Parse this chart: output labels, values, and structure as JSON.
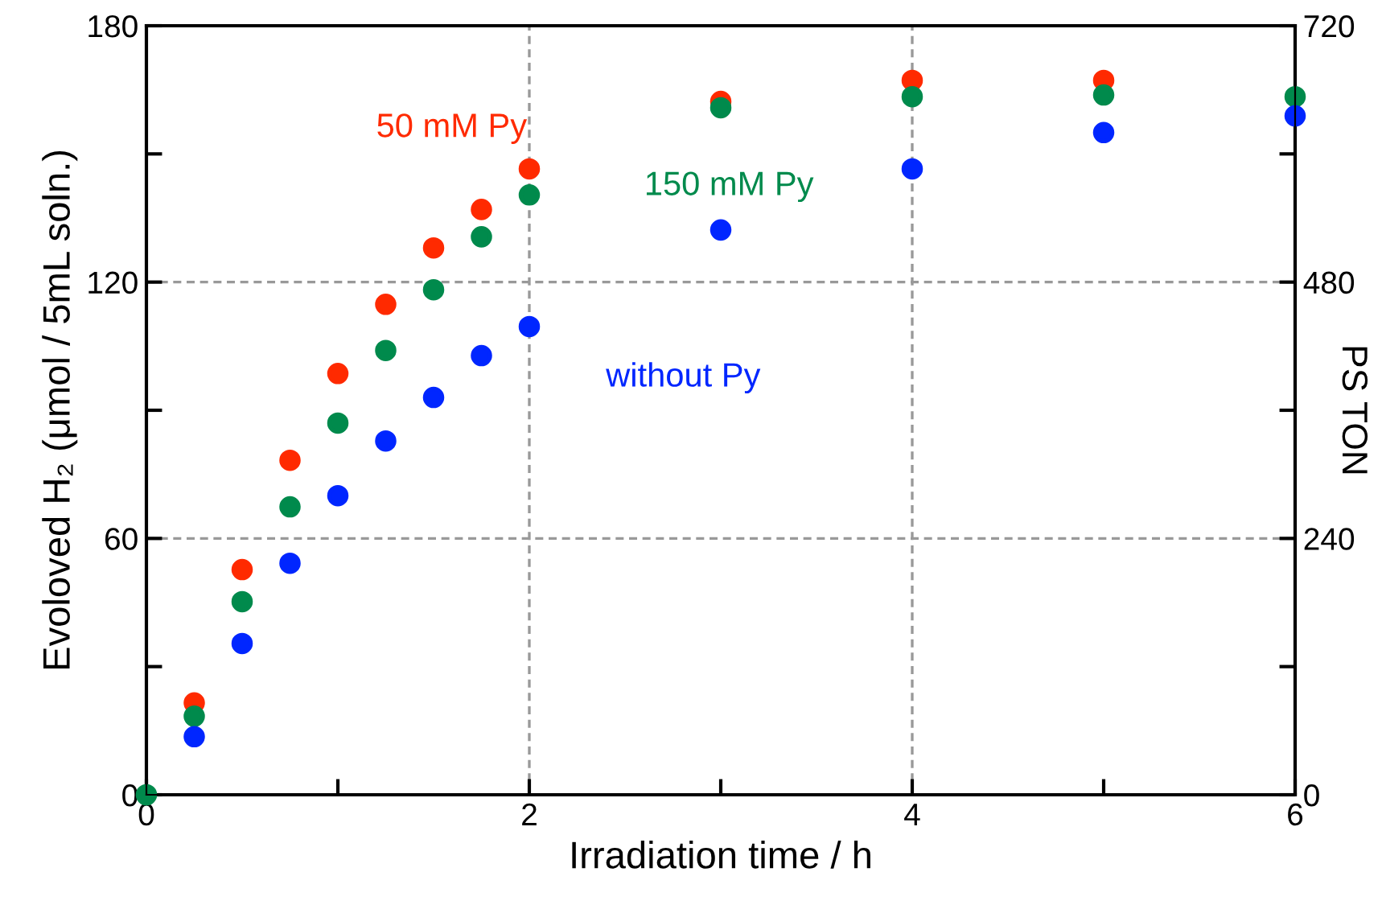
{
  "chart_data": {
    "type": "scatter",
    "xlabel": "Irradiation time / h",
    "ylabel": "Evoloved H₂ (μmol / 5mL soln.)",
    "y2label": "PS TON",
    "x": [
      0,
      0.25,
      0.5,
      0.75,
      1,
      1.25,
      1.5,
      1.75,
      2,
      3,
      4,
      5,
      6
    ],
    "series": [
      {
        "name": "50 mM Py",
        "color": "#ff2a00",
        "values": [
          null,
          21.5,
          52.7,
          78.3,
          98.6,
          114.8,
          128,
          137,
          146.5,
          162.3,
          167.2,
          167.2,
          null
        ]
      },
      {
        "name": "150 mM Py",
        "color": "#008a4c",
        "values": [
          0,
          18.4,
          45.2,
          67.4,
          87,
          104,
          118.2,
          130.6,
          140.4,
          160.8,
          163.4,
          163.8,
          163.4
        ]
      },
      {
        "name": "without Py",
        "color": "#0026ff",
        "values": [
          null,
          13.6,
          35.4,
          54.2,
          70,
          82.8,
          93,
          102.8,
          109.6,
          132.2,
          146.5,
          155,
          158.9
        ]
      }
    ],
    "xlim": [
      0,
      6
    ],
    "xticks": [
      0,
      {
        "value": 1,
        "label": null
      },
      2,
      {
        "value": 3,
        "label": null
      },
      4,
      {
        "value": 5,
        "label": null
      },
      6
    ],
    "ylim": [
      0,
      180
    ],
    "yticks": [
      0,
      {
        "value": 30,
        "label": null
      },
      60,
      {
        "value": 90,
        "label": null
      },
      120,
      {
        "value": 150,
        "label": null
      },
      180
    ],
    "y2lim": [
      0,
      720
    ],
    "y2ticks": [
      0,
      {
        "value": 120,
        "label": null
      },
      240,
      {
        "value": 360,
        "label": null
      },
      480,
      {
        "value": 600,
        "label": null
      },
      720
    ],
    "grid": true,
    "legend": false,
    "marker": "circle"
  }
}
